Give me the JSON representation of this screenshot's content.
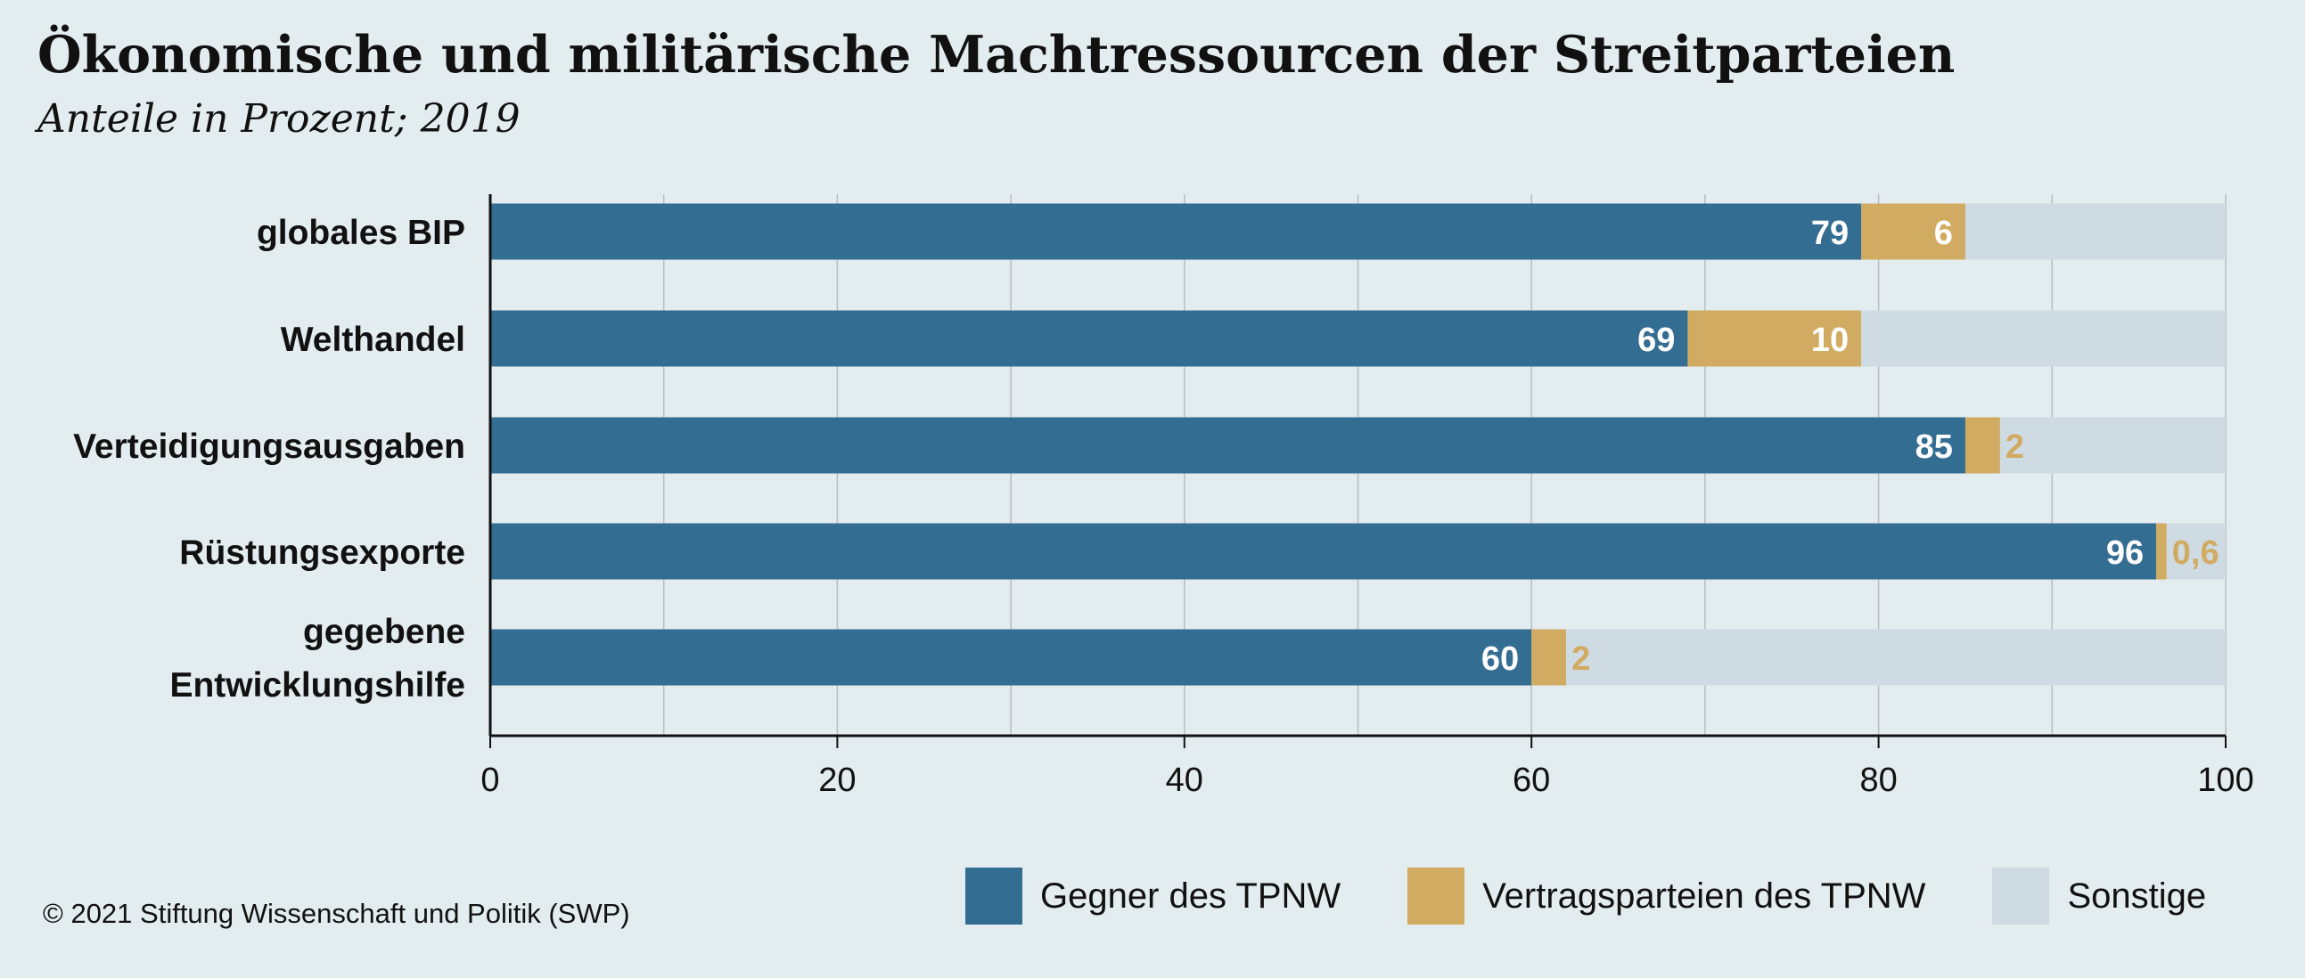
{
  "header": {
    "title": "Ökonomische und militärische Machtressourcen der Streitparteien",
    "subtitle": "Anteile in Prozent; 2019"
  },
  "footer": {
    "copyright": "© 2021 Stiftung Wissenschaft und Politik (SWP)"
  },
  "colors": {
    "gegner": "#346d92",
    "vertragsparteien": "#d1ab62",
    "sonstige": "#cfdbe3",
    "grid": "#b8bec2",
    "axis": "#111111",
    "background": "#e3ecef"
  },
  "chart_data": {
    "type": "bar",
    "orientation": "horizontal",
    "stacked": true,
    "title": "Ökonomische und militärische Machtressourcen der Streitparteien",
    "subtitle": "Anteile in Prozent; 2019",
    "categories": [
      [
        "globales BIP"
      ],
      [
        "Welthandel"
      ],
      [
        "Verteidigungsausgaben"
      ],
      [
        "Rüstungsexporte"
      ],
      [
        "gegebene",
        "Entwicklungshilfe"
      ]
    ],
    "series": [
      {
        "name": "Gegner des TPNW",
        "values": [
          79,
          69,
          85,
          96,
          60
        ],
        "labels": [
          "79",
          "69",
          "85",
          "96",
          "60"
        ]
      },
      {
        "name": "Vertragsparteien des TPNW",
        "values": [
          6,
          10,
          2,
          0.6,
          2
        ],
        "labels": [
          "6",
          "10",
          "2",
          "0,6",
          "2"
        ]
      },
      {
        "name": "Sonstige",
        "values": [
          15,
          21,
          13,
          3.4,
          38
        ]
      }
    ],
    "xlim": [
      0,
      100
    ],
    "xticks": [
      0,
      20,
      40,
      60,
      80,
      100
    ],
    "grid": true,
    "grid_step": 10,
    "legend_position": "bottom-right"
  }
}
